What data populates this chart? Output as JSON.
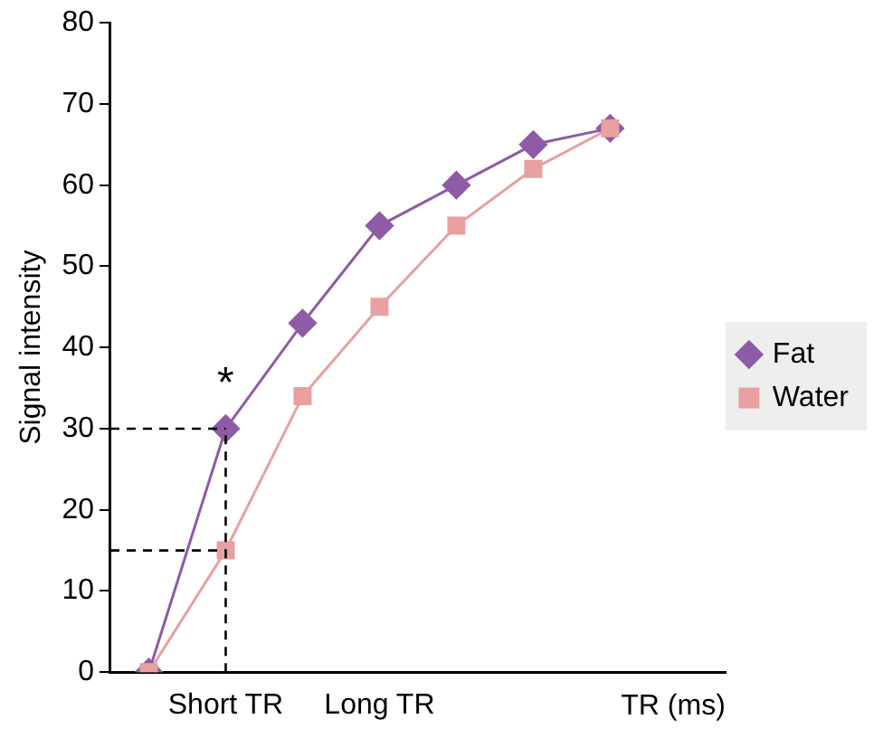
{
  "chart_data": {
    "type": "line",
    "ylabel": "Signal intensity",
    "xlabel": "TR (ms)",
    "categories": [
      null,
      "Short TR",
      null,
      "Long TR",
      null,
      null,
      null,
      null
    ],
    "series": [
      {
        "name": "Fat",
        "color": "#8e5ba6",
        "marker": "diamond",
        "values": [
          0,
          30,
          43,
          55,
          60,
          65,
          67,
          null
        ]
      },
      {
        "name": "Water",
        "color": "#e8a0a0",
        "marker": "square",
        "values": [
          0,
          15,
          34,
          45,
          55,
          62,
          67,
          null
        ]
      }
    ],
    "ylim": [
      0,
      80
    ],
    "yticks": [
      0,
      10,
      20,
      30,
      40,
      50,
      60,
      70,
      80
    ],
    "grid": false,
    "legend": "right",
    "ref_lines": [
      {
        "axis": "y",
        "value": 30,
        "line_style": "dashed",
        "color": "#000000"
      },
      {
        "axis": "y",
        "value": 15,
        "line_style": "dashed",
        "color": "#000000"
      },
      {
        "axis": "x",
        "value": "Short TR",
        "line_style": "dashed",
        "color": "#000000"
      }
    ],
    "annotations": [
      "*"
    ]
  }
}
